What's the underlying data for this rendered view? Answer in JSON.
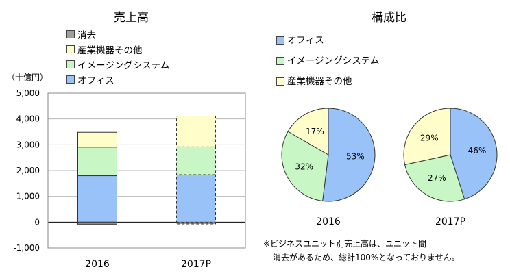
{
  "colors": {
    "office": "#99c2f8",
    "imaging": "#c8f7c5",
    "industrial": "#fffdc9",
    "elimination": "#9e9e9e"
  },
  "chart_data": [
    {
      "type": "bar",
      "stacked": true,
      "title": "売上高",
      "unit_label": "（十億円）",
      "categories": [
        "2016",
        "2017P"
      ],
      "series": [
        {
          "name": "オフィス",
          "values": [
            1800,
            1840
          ],
          "color_key": "office"
        },
        {
          "name": "イメージングシステム",
          "values": [
            1110,
            1080
          ],
          "color_key": "imaging"
        },
        {
          "name": "産業機器その他",
          "values": [
            570,
            1190
          ],
          "color_key": "industrial"
        },
        {
          "name": "消去",
          "values": [
            -80,
            -70
          ],
          "color_key": "elimination"
        }
      ],
      "legend_order": [
        "消去",
        "産業機器その他",
        "イメージングシステム",
        "オフィス"
      ],
      "forecast_categories": [
        "2017P"
      ],
      "ylim": [
        -1000,
        5000
      ],
      "yticks": [
        -1000,
        0,
        1000,
        2000,
        3000,
        4000,
        5000
      ],
      "ytick_labels": [
        "-1,000",
        "0",
        "1,000",
        "2,000",
        "3,000",
        "4,000",
        "5,000"
      ],
      "grid": true,
      "legend_position": "top-left"
    },
    {
      "type": "pie",
      "title": "構成比",
      "legend": [
        {
          "name": "オフィス",
          "color_key": "office"
        },
        {
          "name": "イメージングシステム",
          "color_key": "imaging"
        },
        {
          "name": "産業機器その他",
          "color_key": "industrial"
        }
      ],
      "pies": [
        {
          "label": "2016",
          "slices": [
            {
              "name": "オフィス",
              "value": 53,
              "label": "53%",
              "color_key": "office"
            },
            {
              "name": "イメージングシステム",
              "value": 32,
              "label": "32%",
              "color_key": "imaging"
            },
            {
              "name": "産業機器その他",
              "value": 17,
              "label": "17%",
              "color_key": "industrial"
            }
          ]
        },
        {
          "label": "2017P",
          "slices": [
            {
              "name": "オフィス",
              "value": 46,
              "label": "46%",
              "color_key": "office"
            },
            {
              "name": "イメージングシステム",
              "value": 27,
              "label": "27%",
              "color_key": "imaging"
            },
            {
              "name": "産業機器その他",
              "value": 29,
              "label": "29%",
              "color_key": "industrial"
            }
          ]
        }
      ]
    }
  ],
  "note": {
    "line1": "※ビジネスユニット別売上高は、ユニット間",
    "line2": "消去があるため、総計100%となっておりません。"
  }
}
